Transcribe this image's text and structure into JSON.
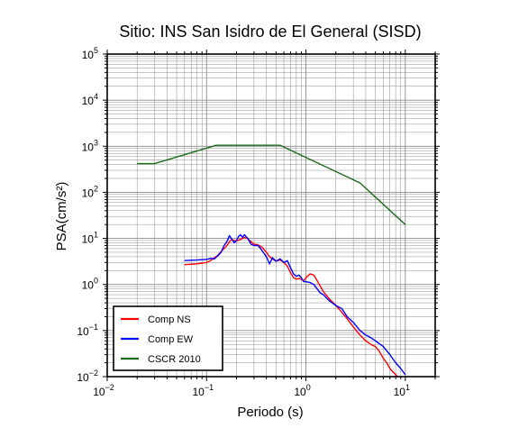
{
  "chart_data": {
    "type": "line",
    "title": "Sitio: INS San Isidro de El General (SISD)",
    "xlabel": "Periodo (s)",
    "ylabel": "PSA(cm/s²)",
    "xscale": "log",
    "yscale": "log",
    "xlim": [
      0.01,
      20
    ],
    "ylim": [
      0.01,
      100000
    ],
    "x_ticks": [
      {
        "value": 0.01,
        "base": "10",
        "exp": "−2"
      },
      {
        "value": 0.1,
        "base": "10",
        "exp": "−1"
      },
      {
        "value": 1,
        "base": "10",
        "exp": "0"
      },
      {
        "value": 10,
        "base": "10",
        "exp": "1"
      }
    ],
    "y_ticks": [
      {
        "value": 0.01,
        "base": "10",
        "exp": "−2"
      },
      {
        "value": 0.1,
        "base": "10",
        "exp": "−1"
      },
      {
        "value": 1,
        "base": "10",
        "exp": "0"
      },
      {
        "value": 10,
        "base": "10",
        "exp": "1"
      },
      {
        "value": 100,
        "base": "10",
        "exp": "2"
      },
      {
        "value": 1000,
        "base": "10",
        "exp": "3"
      },
      {
        "value": 10000,
        "base": "10",
        "exp": "4"
      },
      {
        "value": 100000,
        "base": "10",
        "exp": "5"
      }
    ],
    "grid": true,
    "legend_position": "bottom-left",
    "series": [
      {
        "name": "Comp NS",
        "color": "#ff0000",
        "x": [
          0.06,
          0.07,
          0.08,
          0.09,
          0.1,
          0.11,
          0.12,
          0.13,
          0.14,
          0.15,
          0.16,
          0.17,
          0.18,
          0.19,
          0.2,
          0.22,
          0.24,
          0.26,
          0.28,
          0.3,
          0.33,
          0.36,
          0.4,
          0.43,
          0.46,
          0.5,
          0.55,
          0.6,
          0.65,
          0.7,
          0.75,
          0.8,
          0.85,
          0.9,
          0.95,
          1.0,
          1.1,
          1.2,
          1.3,
          1.4,
          1.5,
          1.7,
          2.0,
          2.3,
          2.6,
          3.0,
          3.5,
          4.0,
          4.5,
          5.0,
          5.5,
          6.0,
          6.5,
          7.0,
          8.0,
          9.0
        ],
        "y": [
          2.7,
          2.75,
          2.8,
          2.9,
          3.0,
          3.3,
          3.8,
          4.3,
          5.2,
          6.0,
          7.0,
          8.5,
          9.5,
          9.0,
          8.8,
          9.5,
          10.5,
          9.8,
          8.5,
          7.5,
          7.2,
          6.5,
          5.0,
          4.0,
          3.6,
          3.2,
          3.4,
          3.0,
          2.5,
          1.8,
          1.4,
          1.3,
          1.35,
          1.3,
          1.2,
          1.4,
          1.7,
          1.6,
          1.2,
          0.9,
          0.7,
          0.5,
          0.35,
          0.25,
          0.18,
          0.12,
          0.08,
          0.06,
          0.05,
          0.045,
          0.035,
          0.025,
          0.02,
          0.015,
          0.011,
          0.0085
        ]
      },
      {
        "name": "Comp EW",
        "color": "#0000ff",
        "x": [
          0.06,
          0.07,
          0.08,
          0.09,
          0.1,
          0.11,
          0.12,
          0.13,
          0.14,
          0.15,
          0.16,
          0.17,
          0.18,
          0.19,
          0.2,
          0.21,
          0.22,
          0.23,
          0.24,
          0.26,
          0.28,
          0.3,
          0.33,
          0.36,
          0.4,
          0.43,
          0.46,
          0.5,
          0.55,
          0.6,
          0.65,
          0.7,
          0.75,
          0.8,
          0.85,
          0.9,
          0.95,
          1.0,
          1.1,
          1.2,
          1.3,
          1.4,
          1.5,
          1.7,
          2.0,
          2.3,
          2.6,
          3.0,
          3.5,
          4.0,
          4.5,
          5.0,
          6.0,
          7.0,
          8.0,
          9.0,
          10.0
        ],
        "y": [
          3.3,
          3.35,
          3.4,
          3.45,
          3.5,
          3.7,
          3.6,
          4.2,
          5.0,
          7.0,
          8.5,
          11.5,
          9.5,
          8.0,
          9.0,
          11.0,
          12.0,
          10.5,
          12.0,
          10.0,
          7.5,
          7.0,
          7.0,
          5.5,
          4.0,
          2.8,
          3.8,
          3.2,
          3.6,
          3.0,
          3.3,
          2.3,
          1.7,
          1.5,
          1.6,
          1.4,
          1.15,
          1.15,
          1.1,
          1.0,
          0.8,
          0.65,
          0.6,
          0.45,
          0.35,
          0.3,
          0.2,
          0.15,
          0.1,
          0.08,
          0.07,
          0.06,
          0.045,
          0.03,
          0.02,
          0.015,
          0.011
        ]
      },
      {
        "name": "CSCR 2010",
        "color": "#1a6b1a",
        "x": [
          0.02,
          0.03,
          0.125,
          0.55,
          3.5,
          10.0
        ],
        "y": [
          420,
          420,
          1050,
          1050,
          160,
          20
        ]
      }
    ]
  }
}
